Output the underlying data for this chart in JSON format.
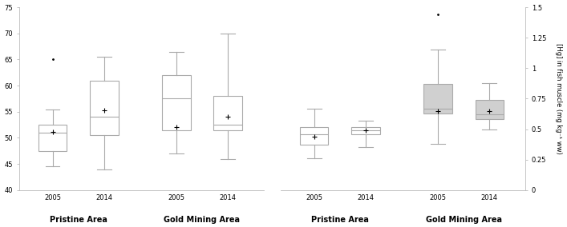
{
  "left_plot": {
    "ylim": [
      40,
      75
    ],
    "yticks": [
      40,
      45,
      50,
      55,
      60,
      65,
      70,
      75
    ],
    "boxes": {
      "pristine_2005": {
        "whislo": 44.5,
        "q1": 47.5,
        "median": 51.0,
        "q3": 52.5,
        "whishi": 55.5,
        "mean": 51.2,
        "fliers": [
          65.0
        ]
      },
      "pristine_2014": {
        "whislo": 44.0,
        "q1": 50.5,
        "median": 54.0,
        "q3": 61.0,
        "whishi": 65.5,
        "mean": 55.3,
        "fliers": []
      },
      "mining_2005": {
        "whislo": 47.0,
        "q1": 51.5,
        "median": 57.5,
        "q3": 62.0,
        "whishi": 66.5,
        "mean": 52.0,
        "fliers": []
      },
      "mining_2014": {
        "whislo": 46.0,
        "q1": 51.5,
        "median": 52.5,
        "q3": 58.0,
        "whishi": 70.0,
        "mean": 54.0,
        "fliers": []
      }
    },
    "box_colors": [
      "white",
      "white",
      "white",
      "white"
    ],
    "group_label_texts": [
      "Pristine Area",
      "Gold Mining Area"
    ]
  },
  "right_plot": {
    "ylabel": "[Hg] in fish muscle (mg kg⁻¹ ww)",
    "ylim": [
      0,
      1.5
    ],
    "yticks": [
      0,
      0.25,
      0.5,
      0.75,
      1.0,
      1.25,
      1.5
    ],
    "boxes": {
      "pristine_2005": {
        "whislo": 0.26,
        "q1": 0.37,
        "median": 0.46,
        "q3": 0.52,
        "whishi": 0.67,
        "mean": 0.44,
        "fliers": []
      },
      "pristine_2014": {
        "whislo": 0.35,
        "q1": 0.46,
        "median": 0.49,
        "q3": 0.52,
        "whishi": 0.57,
        "mean": 0.49,
        "fliers": []
      },
      "mining_2005": {
        "whislo": 0.38,
        "q1": 0.63,
        "median": 0.67,
        "q3": 0.87,
        "whishi": 1.15,
        "mean": 0.65,
        "fliers": [
          1.44
        ]
      },
      "mining_2014": {
        "whislo": 0.5,
        "q1": 0.58,
        "median": 0.62,
        "q3": 0.74,
        "whishi": 0.88,
        "mean": 0.65,
        "fliers": []
      }
    },
    "box_colors": [
      "white",
      "white",
      "#d0d0d0",
      "#d0d0d0"
    ],
    "group_label_texts": [
      "Pristine Area",
      "Gold Mining Area"
    ]
  },
  "background_color": "white",
  "edge_color": "#aaaaaa",
  "median_color": "#aaaaaa",
  "whisker_color": "#aaaaaa",
  "mean_marker": "+",
  "mean_color": "black",
  "mean_size": 5,
  "flierpointsize": 2,
  "fontsize_ticks": 6,
  "fontsize_group": 7,
  "fontsize_ylabel": 6,
  "box_width": 0.55,
  "positions": [
    1,
    2,
    3.4,
    4.4
  ],
  "xlim": [
    0.35,
    5.1
  ]
}
